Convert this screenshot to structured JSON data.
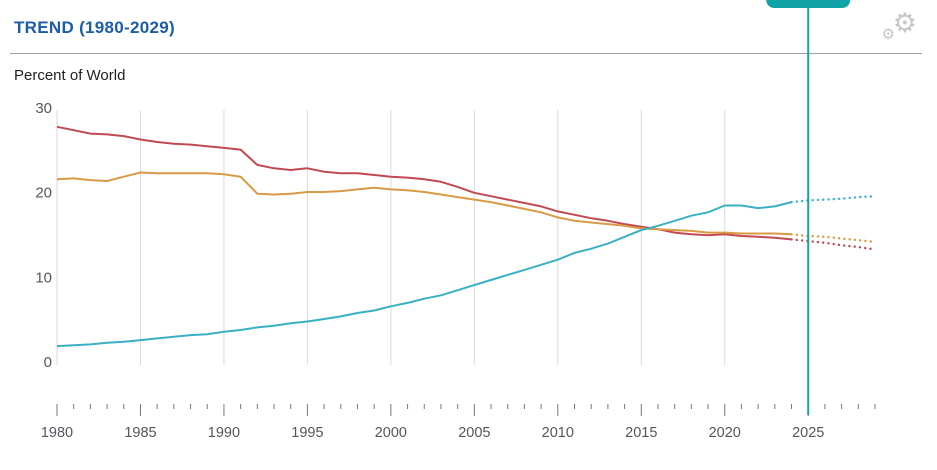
{
  "header": {
    "title": "TREND (1980-2029)",
    "subtitle": "Percent of World",
    "settings_icon": "settings-gear"
  },
  "chart_data": {
    "type": "line",
    "title": "TREND (1980-2029)",
    "ylabel": "Percent of World",
    "xlim": [
      1980,
      2029
    ],
    "ylim": [
      0,
      30
    ],
    "grid": "vertical-only",
    "legend": "none",
    "projection_from_year": 2024,
    "current_year_marker": 2025,
    "x": [
      1980,
      1981,
      1982,
      1983,
      1984,
      1985,
      1986,
      1987,
      1988,
      1989,
      1990,
      1991,
      1992,
      1993,
      1994,
      1995,
      1996,
      1997,
      1998,
      1999,
      2000,
      2001,
      2002,
      2003,
      2004,
      2005,
      2006,
      2007,
      2008,
      2009,
      2010,
      2011,
      2012,
      2013,
      2014,
      2015,
      2016,
      2017,
      2018,
      2019,
      2020,
      2021,
      2022,
      2023,
      2024,
      2025,
      2026,
      2027,
      2028,
      2029
    ],
    "x_tick_labels": [
      1980,
      1985,
      1990,
      1995,
      2000,
      2005,
      2010,
      2015,
      2020,
      2025
    ],
    "y_ticks": [
      0,
      10,
      20,
      30
    ],
    "series": [
      {
        "name": "series-red",
        "color": "#c04a52",
        "values": [
          27.9,
          27.5,
          27.1,
          27.0,
          26.8,
          26.4,
          26.1,
          25.9,
          25.8,
          25.6,
          25.4,
          25.2,
          23.4,
          23.0,
          22.8,
          23.0,
          22.6,
          22.4,
          22.4,
          22.2,
          22.0,
          21.9,
          21.7,
          21.4,
          20.8,
          20.1,
          19.7,
          19.3,
          18.9,
          18.5,
          17.9,
          17.5,
          17.1,
          16.8,
          16.4,
          16.1,
          15.8,
          15.4,
          15.2,
          15.1,
          15.2,
          15.0,
          14.9,
          14.8,
          14.6,
          14.4,
          14.2,
          13.9,
          13.7,
          13.4
        ]
      },
      {
        "name": "series-orange",
        "color": "#d99a45",
        "values": [
          21.7,
          21.8,
          21.6,
          21.5,
          22.0,
          22.5,
          22.4,
          22.4,
          22.4,
          22.4,
          22.3,
          22.0,
          20.0,
          19.9,
          20.0,
          20.2,
          20.2,
          20.3,
          20.5,
          20.7,
          20.5,
          20.4,
          20.2,
          19.9,
          19.6,
          19.3,
          19.0,
          18.6,
          18.2,
          17.8,
          17.2,
          16.8,
          16.6,
          16.4,
          16.2,
          15.9,
          15.8,
          15.7,
          15.6,
          15.4,
          15.4,
          15.3,
          15.3,
          15.3,
          15.2,
          15.0,
          14.9,
          14.7,
          14.5,
          14.3
        ]
      },
      {
        "name": "series-teal",
        "color": "#39b0c4",
        "values": [
          2.0,
          2.1,
          2.2,
          2.4,
          2.5,
          2.7,
          2.9,
          3.1,
          3.3,
          3.4,
          3.7,
          3.9,
          4.2,
          4.4,
          4.7,
          4.9,
          5.2,
          5.5,
          5.9,
          6.2,
          6.7,
          7.1,
          7.6,
          8.0,
          8.6,
          9.2,
          9.8,
          10.4,
          11.0,
          11.6,
          12.2,
          13.0,
          13.5,
          14.1,
          14.9,
          15.7,
          16.2,
          16.8,
          17.4,
          17.8,
          18.6,
          18.6,
          18.3,
          18.5,
          19.0,
          19.2,
          19.3,
          19.4,
          19.6,
          19.7
        ]
      }
    ],
    "marker_color": "#10a4a9",
    "grid_color": "#dadada",
    "tick_color": "#75757f",
    "axis_text_color": "#55555f"
  }
}
